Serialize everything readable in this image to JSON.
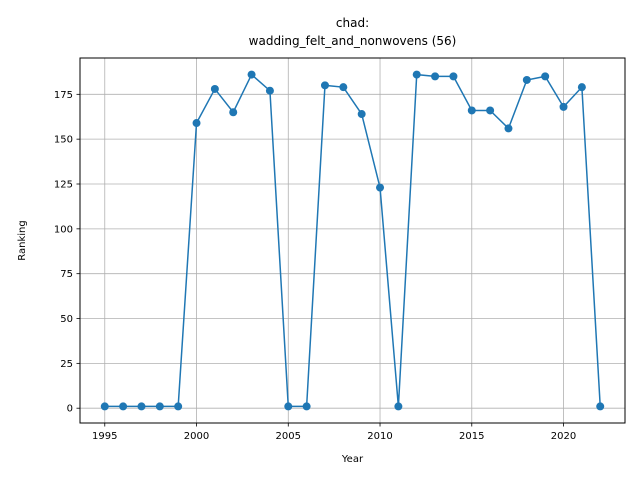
{
  "chart_data": {
    "type": "line",
    "title_line1": "chad:",
    "title_line2": "wadding_felt_and_nonwovens (56)",
    "xlabel": "Year",
    "ylabel": "Ranking",
    "xlim": [
      1993.65,
      2023.35
    ],
    "ylim": [
      -8.25,
      195.25
    ],
    "xticks": [
      1995,
      2000,
      2005,
      2010,
      2015,
      2020
    ],
    "yticks": [
      0,
      25,
      50,
      75,
      100,
      125,
      150,
      175
    ],
    "grid": true,
    "series_color": "#1f77b4",
    "x": [
      1995,
      1996,
      1997,
      1998,
      1999,
      2000,
      2001,
      2002,
      2003,
      2004,
      2005,
      2006,
      2007,
      2008,
      2009,
      2010,
      2011,
      2012,
      2013,
      2014,
      2015,
      2016,
      2017,
      2018,
      2019,
      2020,
      2021,
      2022
    ],
    "y": [
      1,
      1,
      1,
      1,
      1,
      159,
      178,
      165,
      186,
      177,
      1,
      1,
      180,
      179,
      164,
      123,
      1,
      186,
      185,
      185,
      166,
      166,
      156,
      183,
      185,
      168,
      179,
      1
    ]
  }
}
